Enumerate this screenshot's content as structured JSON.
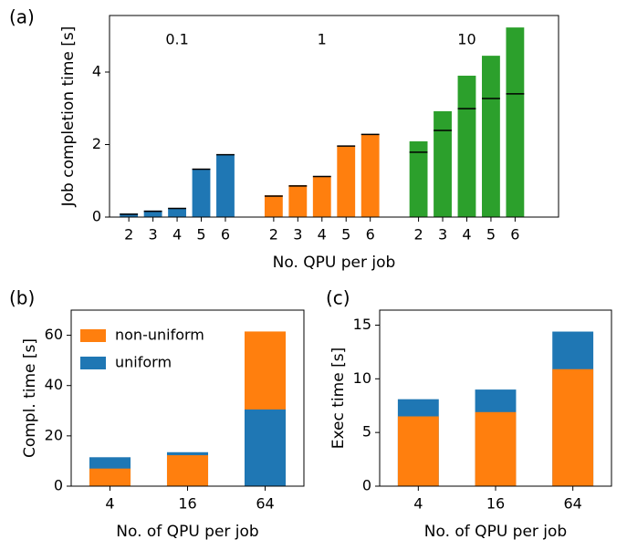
{
  "chart_data": [
    {
      "type": "bar",
      "panel_label": "(a)",
      "ylabel": "Job completion time [s]",
      "xlabel": "No. QPU per job",
      "categories": [
        "2",
        "3",
        "4",
        "5",
        "6"
      ],
      "series": [
        {
          "name": "0.1",
          "color": "#1f77b4",
          "values": [
            0.1,
            0.18,
            0.25,
            1.33,
            1.73
          ],
          "markers": [
            0.08,
            0.16,
            0.24,
            1.32,
            1.72
          ]
        },
        {
          "name": "1",
          "color": "#ff7f0e",
          "values": [
            0.6,
            0.88,
            1.13,
            1.96,
            2.29
          ],
          "markers": [
            0.58,
            0.86,
            1.12,
            1.96,
            2.28
          ]
        },
        {
          "name": "10",
          "color": "#2ca02c",
          "values": [
            2.09,
            2.92,
            3.9,
            4.45,
            5.23
          ],
          "markers": [
            1.79,
            2.39,
            2.99,
            3.27,
            3.4
          ]
        }
      ],
      "ylim": [
        0,
        5.56
      ],
      "yticks": [
        0,
        2,
        4
      ]
    },
    {
      "type": "overlap_bar",
      "panel_label": "(b)",
      "ylabel": "Compl. time [s]",
      "xlabel": "No. of QPU per job",
      "categories": [
        "4",
        "16",
        "64"
      ],
      "series": [
        {
          "name": "non-uniform",
          "color": "#ff7f0e",
          "values": [
            7,
            12.3,
            61.5
          ]
        },
        {
          "name": "uniform",
          "color": "#1f77b4",
          "values": [
            11.5,
            13.5,
            30.5
          ]
        }
      ],
      "legend": "upper left",
      "ylim": [
        0,
        70
      ],
      "yticks": [
        0,
        20,
        40,
        60
      ]
    },
    {
      "type": "overlap_bar",
      "panel_label": "(c)",
      "ylabel": "Exec time [s]",
      "xlabel": "No. of QPU per job",
      "categories": [
        "4",
        "16",
        "64"
      ],
      "series": [
        {
          "name": "non-uniform",
          "color": "#ff7f0e",
          "values": [
            6.5,
            6.9,
            10.9
          ]
        },
        {
          "name": "uniform",
          "color": "#1f77b4",
          "values": [
            8.1,
            9.0,
            14.4
          ]
        }
      ],
      "ylim": [
        0,
        16.4
      ],
      "yticks": [
        0,
        5,
        10,
        15
      ]
    }
  ]
}
